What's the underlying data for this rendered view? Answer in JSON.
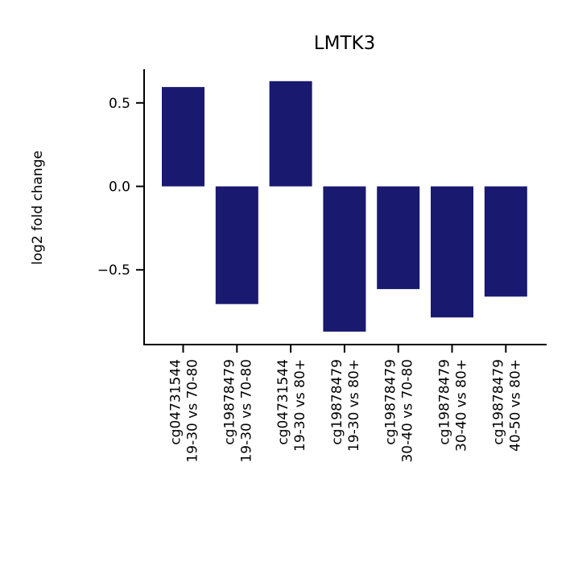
{
  "chart_data": {
    "type": "bar",
    "title": "LMTK3",
    "xlabel": "",
    "ylabel": "log2 fold change",
    "categories": [
      [
        "cg04731544",
        "19-30 vs 70-80"
      ],
      [
        "cg19878479",
        "19-30 vs 70-80"
      ],
      [
        "cg04731544",
        "19-30 vs 80+"
      ],
      [
        "cg19878479",
        "19-30 vs 80+"
      ],
      [
        "cg19878479",
        "30-40 vs 70-80"
      ],
      [
        "cg19878479",
        "30-40 vs 80+"
      ],
      [
        "cg19878479",
        "40-50 vs 80+"
      ]
    ],
    "values": [
      0.595,
      -0.705,
      0.63,
      -0.87,
      -0.615,
      -0.785,
      -0.66
    ],
    "ylim": [
      -0.95,
      0.7
    ],
    "yticks": [
      0.5,
      0.0,
      -0.5
    ],
    "ytick_labels": [
      "0.5",
      "0.0",
      "−0.5"
    ],
    "bar_color": "#191970",
    "grid": false,
    "legend": "none"
  }
}
